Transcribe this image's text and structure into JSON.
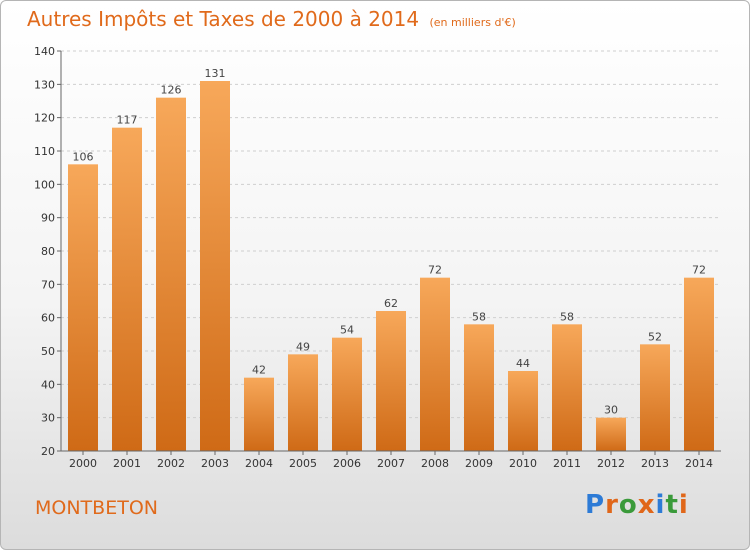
{
  "header": {
    "title": "Autres Impôts et Taxes de 2000 à 2014",
    "subtitle": "(en milliers d'€)"
  },
  "footer": {
    "city": "MONTBETON",
    "brand": "Proxiti"
  },
  "colors": {
    "accent": "#e06a1b",
    "bar_light": "#f7a85a",
    "bar_dark": "#d06d1a"
  },
  "chart_data": {
    "type": "bar",
    "title": "Autres Impôts et Taxes de 2000 à 2014",
    "subtitle": "(en milliers d'€)",
    "categories": [
      "2000",
      "2001",
      "2002",
      "2003",
      "2004",
      "2005",
      "2006",
      "2007",
      "2008",
      "2009",
      "2010",
      "2011",
      "2012",
      "2013",
      "2014"
    ],
    "values": [
      106,
      117,
      126,
      131,
      42,
      49,
      54,
      62,
      72,
      58,
      44,
      58,
      30,
      52,
      72
    ],
    "ylim": [
      20,
      140
    ],
    "yticks": [
      20,
      30,
      40,
      50,
      60,
      70,
      80,
      90,
      100,
      110,
      120,
      130,
      140
    ],
    "grid": true,
    "data_labels": true
  }
}
